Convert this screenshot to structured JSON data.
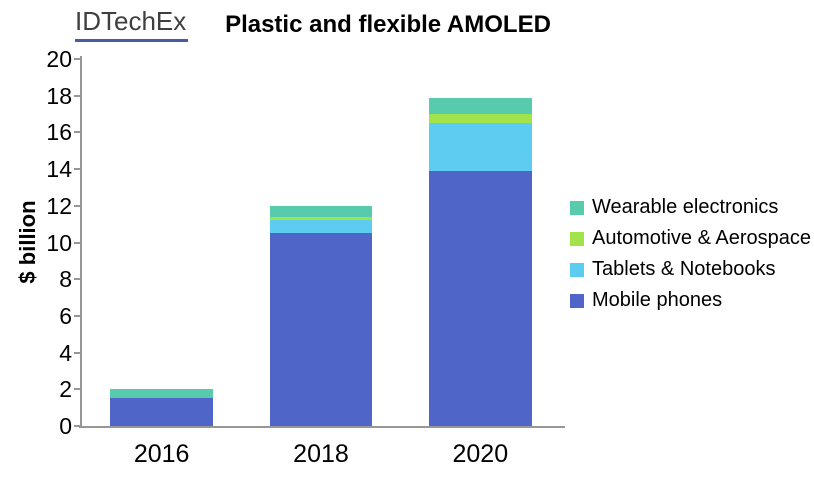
{
  "header": {
    "logo_text": "IDTechEx",
    "title": "Plastic and flexible AMOLED"
  },
  "chart_data": {
    "type": "bar",
    "stacked": true,
    "title": "Plastic and flexible AMOLED",
    "xlabel": "",
    "ylabel": "$ billion",
    "ylim": [
      0,
      20
    ],
    "ytick_step": 2,
    "grid": false,
    "legend_position": "right",
    "categories": [
      "2016",
      "2018",
      "2020"
    ],
    "series": [
      {
        "name": "Mobile phones",
        "color": "#4f65c7",
        "values": [
          1.5,
          10.5,
          13.9
        ]
      },
      {
        "name": "Tablets & Notebooks",
        "color": "#5ccdf1",
        "values": [
          0,
          0.7,
          2.6
        ]
      },
      {
        "name": "Automotive & Aerospace",
        "color": "#a2e34b",
        "values": [
          0,
          0.2,
          0.5
        ]
      },
      {
        "name": "Wearable electronics",
        "color": "#58cbac",
        "values": [
          0.5,
          0.6,
          0.9
        ]
      }
    ],
    "legend_order": [
      "Wearable electronics",
      "Automotive & Aerospace",
      "Tablets & Notebooks",
      "Mobile phones"
    ],
    "totals": [
      2.0,
      12.0,
      17.9
    ]
  },
  "colors": {
    "axis": "#979797",
    "logo_text": "#3f3f3f",
    "logo_underline": "#4a5ba5",
    "background": "#ffffff"
  }
}
